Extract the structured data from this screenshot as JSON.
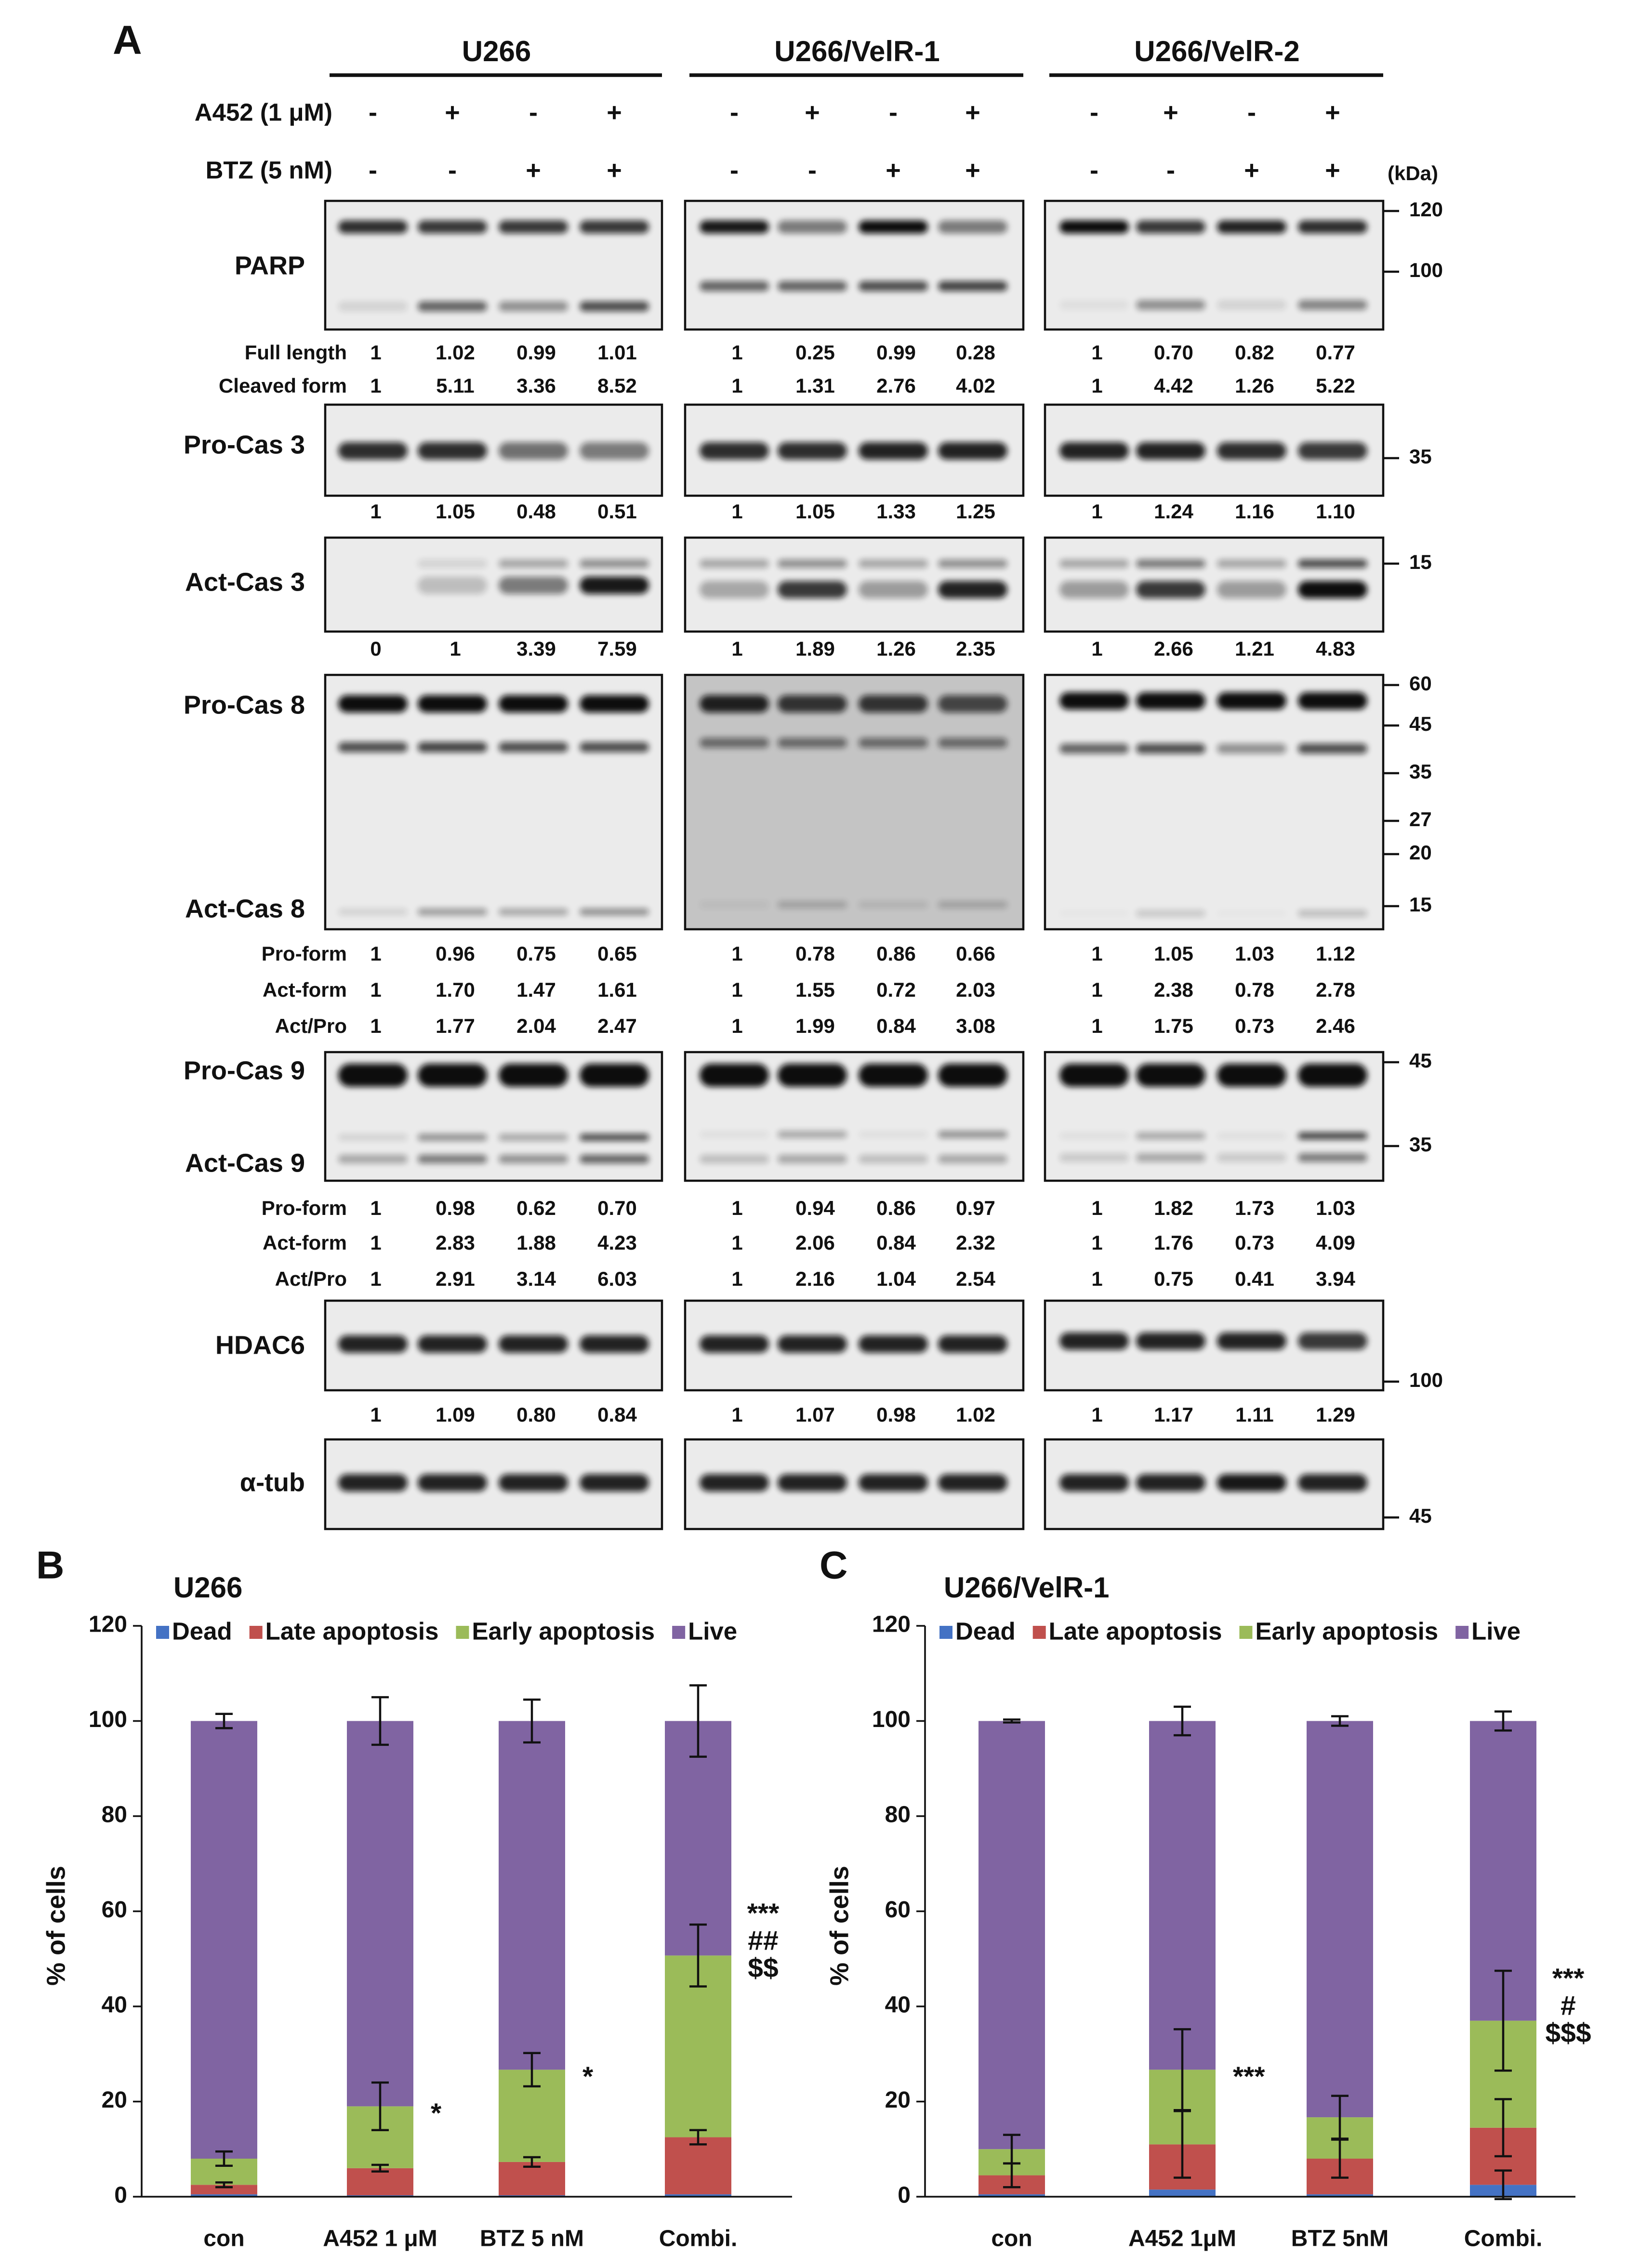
{
  "panel_a": {
    "label": "A",
    "groups": [
      "U266",
      "U266/VelR-1",
      "U266/VelR-2"
    ],
    "kda_label": "(kDa)",
    "treatments": [
      {
        "name": "A452 (1 μM)",
        "signs": [
          "-",
          "+",
          "-",
          "+"
        ]
      },
      {
        "name": "BTZ (5 nM)",
        "signs": [
          "-",
          "-",
          "+",
          "+"
        ]
      }
    ],
    "blots": [
      {
        "labels": [
          "PARP"
        ],
        "markers": [
          120,
          100
        ],
        "quant": [
          {
            "label": "Full length",
            "values": [
              [
                "1",
                "1.02",
                "0.99",
                "1.01"
              ],
              [
                "1",
                "0.25",
                "0.99",
                "0.28"
              ],
              [
                "1",
                "0.70",
                "0.82",
                "0.77"
              ]
            ]
          },
          {
            "label": "Cleaved form",
            "values": [
              [
                "1",
                "5.11",
                "3.36",
                "8.52"
              ],
              [
                "1",
                "1.31",
                "2.76",
                "4.02"
              ],
              [
                "1",
                "4.42",
                "1.26",
                "5.22"
              ]
            ]
          }
        ]
      },
      {
        "labels": [
          "Pro-Cas 3"
        ],
        "markers": [
          35
        ],
        "quant": [
          {
            "values": [
              [
                "1",
                "1.05",
                "0.48",
                "0.51"
              ],
              [
                "1",
                "1.05",
                "1.33",
                "1.25"
              ],
              [
                "1",
                "1.24",
                "1.16",
                "1.10"
              ]
            ]
          }
        ]
      },
      {
        "labels": [
          "Act-Cas 3"
        ],
        "markers": [
          15
        ],
        "quant": [
          {
            "values": [
              [
                "0",
                "1",
                "3.39",
                "7.59"
              ],
              [
                "1",
                "1.89",
                "1.26",
                "2.35"
              ],
              [
                "1",
                "2.66",
                "1.21",
                "4.83"
              ]
            ]
          }
        ]
      },
      {
        "labels": [
          "Pro-Cas 8",
          "Act-Cas 8"
        ],
        "markers": [
          60,
          45,
          35,
          27,
          20,
          15
        ],
        "quant": [
          {
            "label": "Pro-form",
            "values": [
              [
                "1",
                "0.96",
                "0.75",
                "0.65"
              ],
              [
                "1",
                "0.78",
                "0.86",
                "0.66"
              ],
              [
                "1",
                "1.05",
                "1.03",
                "1.12"
              ]
            ]
          },
          {
            "label": "Act-form",
            "values": [
              [
                "1",
                "1.70",
                "1.47",
                "1.61"
              ],
              [
                "1",
                "1.55",
                "0.72",
                "2.03"
              ],
              [
                "1",
                "2.38",
                "0.78",
                "2.78"
              ]
            ]
          },
          {
            "label": "Act/Pro",
            "values": [
              [
                "1",
                "1.77",
                "2.04",
                "2.47"
              ],
              [
                "1",
                "1.99",
                "0.84",
                "3.08"
              ],
              [
                "1",
                "1.75",
                "0.73",
                "2.46"
              ]
            ]
          }
        ]
      },
      {
        "labels": [
          "Pro-Cas 9",
          "Act-Cas 9"
        ],
        "markers": [
          45,
          35
        ],
        "quant": [
          {
            "label": "Pro-form",
            "values": [
              [
                "1",
                "0.98",
                "0.62",
                "0.70"
              ],
              [
                "1",
                "0.94",
                "0.86",
                "0.97"
              ],
              [
                "1",
                "1.82",
                "1.73",
                "1.03"
              ]
            ]
          },
          {
            "label": "Act-form",
            "values": [
              [
                "1",
                "2.83",
                "1.88",
                "4.23"
              ],
              [
                "1",
                "2.06",
                "0.84",
                "2.32"
              ],
              [
                "1",
                "1.76",
                "0.73",
                "4.09"
              ]
            ]
          },
          {
            "label": "Act/Pro",
            "values": [
              [
                "1",
                "2.91",
                "3.14",
                "6.03"
              ],
              [
                "1",
                "2.16",
                "1.04",
                "2.54"
              ],
              [
                "1",
                "0.75",
                "0.41",
                "3.94"
              ]
            ]
          }
        ]
      },
      {
        "labels": [
          "HDAC6"
        ],
        "markers": [
          100
        ],
        "quant": [
          {
            "values": [
              [
                "1",
                "1.09",
                "0.80",
                "0.84"
              ],
              [
                "1",
                "1.07",
                "0.98",
                "1.02"
              ],
              [
                "1",
                "1.17",
                "1.11",
                "1.29"
              ]
            ]
          }
        ]
      },
      {
        "labels": [
          "α-tub"
        ],
        "markers": [
          45
        ],
        "quant": []
      }
    ]
  },
  "chart_data": [
    {
      "type": "bar",
      "stacked": true,
      "panel_label": "B",
      "title": "U266",
      "ylabel": "% of cells",
      "categories": [
        "con",
        "A452 1 μM",
        "BTZ 5 nM",
        "Combi."
      ],
      "series": [
        {
          "name": "Dead",
          "color": "#4472c4",
          "values": [
            0.5,
            0.3,
            0.3,
            0.5
          ],
          "errors": [
            null,
            null,
            null,
            null
          ]
        },
        {
          "name": "Late apoptosis",
          "color": "#c0504d",
          "values": [
            2,
            5.7,
            7,
            12
          ],
          "errors": [
            0.5,
            0.7,
            1,
            1.5
          ]
        },
        {
          "name": "Early apoptosis",
          "color": "#9bbb59",
          "values": [
            5.5,
            13,
            19.4,
            38.2
          ],
          "errors": [
            1.5,
            5,
            3.5,
            6.5
          ]
        },
        {
          "name": "Live",
          "color": "#8064a2",
          "values": [
            92,
            81,
            73.3,
            49.3
          ],
          "errors": [
            1.5,
            5,
            4.5,
            7.5
          ]
        }
      ],
      "ylim": [
        0,
        120
      ],
      "yticks": [
        0,
        20,
        40,
        60,
        80,
        100,
        120
      ],
      "annotations": [
        {
          "category": "A452 1 μM",
          "lines": [
            "*"
          ]
        },
        {
          "category": "BTZ 5 nM",
          "lines": [
            "*"
          ]
        },
        {
          "category": "Combi.",
          "lines": [
            "***",
            "##",
            "$$"
          ]
        }
      ]
    },
    {
      "type": "bar",
      "stacked": true,
      "panel_label": "C",
      "title": "U266/VelR-1",
      "ylabel": "% of cells",
      "categories": [
        "con",
        "A452 1μM",
        "BTZ 5nM",
        "Combi."
      ],
      "series": [
        {
          "name": "Dead",
          "color": "#4472c4",
          "values": [
            0.5,
            1.5,
            0.5,
            2.5
          ],
          "errors": [
            null,
            null,
            null,
            3
          ]
        },
        {
          "name": "Late apoptosis",
          "color": "#c0504d",
          "values": [
            4,
            9.5,
            7.5,
            12
          ],
          "errors": [
            2.5,
            7,
            4,
            6
          ]
        },
        {
          "name": "Early apoptosis",
          "color": "#9bbb59",
          "values": [
            5.5,
            15.7,
            8.7,
            22.5
          ],
          "errors": [
            3,
            8.5,
            4.5,
            10.5
          ]
        },
        {
          "name": "Live",
          "color": "#8064a2",
          "values": [
            90,
            73.3,
            83.3,
            63
          ],
          "errors": [
            0.3,
            3,
            1,
            2
          ]
        }
      ],
      "ylim": [
        0,
        120
      ],
      "yticks": [
        0,
        20,
        40,
        60,
        80,
        100,
        120
      ],
      "annotations": [
        {
          "category": "A452 1μM",
          "lines": [
            "***"
          ]
        },
        {
          "category": "Combi.",
          "lines": [
            "***",
            "#",
            "$$$"
          ]
        }
      ]
    }
  ]
}
